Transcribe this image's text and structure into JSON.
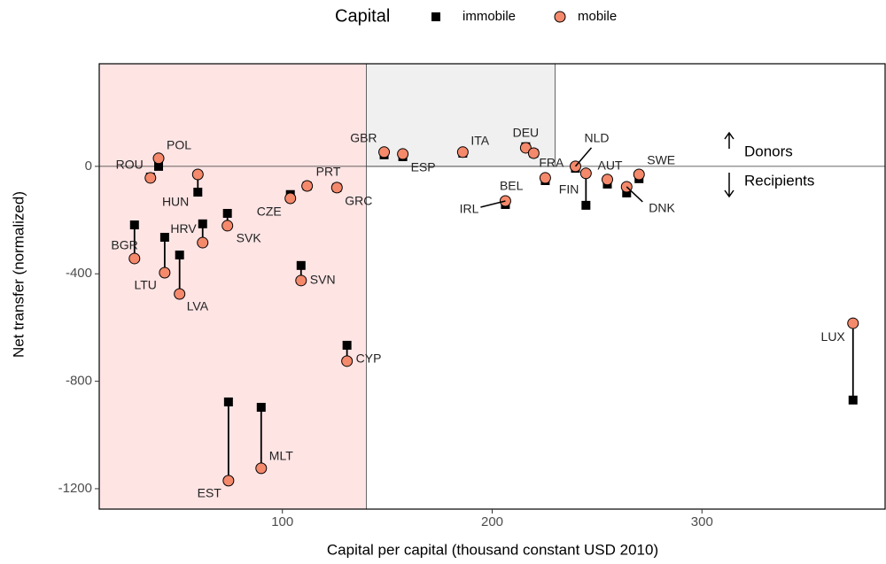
{
  "chart_data": {
    "type": "scatter",
    "legend_title": "Capital",
    "x_label": "Capital per capital (thousand constant USD 2010)",
    "y_label": "Net transfer  (normalized)",
    "annotations": [
      "Donors",
      "Recipients"
    ],
    "labels": [
      "ROU",
      "POL",
      "HUN",
      "BGR",
      "LTU",
      "LVA",
      "HRV",
      "SVK",
      "CZE",
      "PRT",
      "GRC",
      "SVN",
      "CYP",
      "EST",
      "MLT",
      "GBR",
      "ESP",
      "ITA",
      "DEU",
      "FRA",
      "BEL",
      "IRL",
      "NLD",
      "FIN",
      "AUT",
      "DNK",
      "SWE",
      "LUX"
    ],
    "x": [
      37.1,
      41,
      59.7,
      29.5,
      43.9,
      51,
      62,
      73.8,
      103.8,
      111.8,
      126,
      108.9,
      130.8,
      74.3,
      89.9,
      148.5,
      157.4,
      186,
      216,
      219.8,
      225.3,
      206.3,
      239.7,
      244.7,
      254.9,
      264.1,
      270,
      372
    ],
    "series": [
      {
        "name": "immobile",
        "color": "#000000",
        "values": [
          -40,
          0,
          -96,
          -218,
          -264,
          -330,
          -214,
          -175,
          -105,
          -73,
          -79,
          -369,
          -666,
          -877,
          -897,
          43,
          36,
          49,
          73,
          49,
          -53,
          -142,
          -7,
          -145,
          -66,
          -99,
          -46,
          -870
        ]
      },
      {
        "name": "mobile",
        "color": "#f4896b",
        "values": [
          -43,
          30,
          -30,
          -343,
          -396,
          -475,
          -284,
          -221,
          -119,
          -73,
          -79,
          -425,
          -725,
          -1170,
          -1124,
          53,
          46,
          53,
          69,
          49,
          -43,
          -129,
          0,
          -26,
          -49,
          -76,
          -30,
          -584
        ]
      }
    ],
    "regions": [
      {
        "x": [
          12.7,
          140
        ],
        "y": [
          -1276,
          382
        ],
        "color": "#ffe4e4"
      },
      {
        "x": [
          140,
          230
        ],
        "y": [
          0,
          382
        ],
        "color": "#f0f0f0"
      }
    ],
    "hline": 0,
    "xlim": [
      12.7,
      387.3
    ],
    "ylim": [
      -1276,
      382
    ],
    "xticks": [
      100,
      200,
      300
    ],
    "yticks": [
      -1200,
      -800,
      -400,
      0
    ]
  }
}
